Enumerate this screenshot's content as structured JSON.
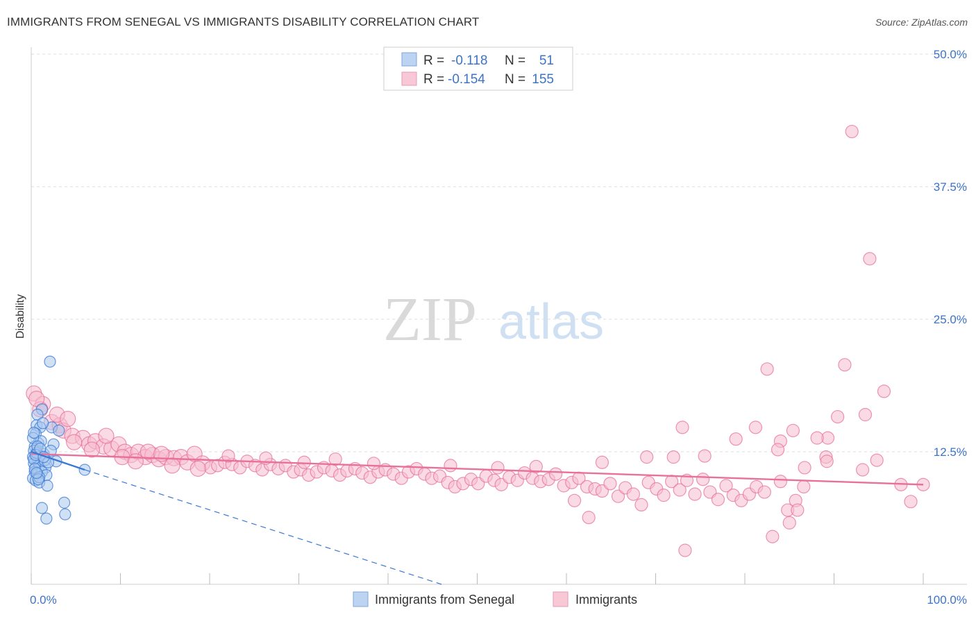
{
  "header": {
    "title": "IMMIGRANTS FROM SENEGAL VS IMMIGRANTS DISABILITY CORRELATION CHART",
    "source": "Source: ZipAtlas.com"
  },
  "watermark": {
    "zip": "ZIP",
    "atlas": "atlas"
  },
  "colors": {
    "blue": "#3a78d4",
    "blue_fill": "#a9c8ee",
    "pink": "#e8709a",
    "pink_fill": "#f5bdd0",
    "tick": "#3b74c8",
    "grid": "#dddddd"
  },
  "legend": {
    "items": [
      {
        "r_label": "R =",
        "r_value": "-0.118",
        "n_label": "N =",
        "n_value": "51"
      },
      {
        "r_label": "R =",
        "r_value": "-0.154",
        "n_label": "N =",
        "n_value": "155"
      }
    ]
  },
  "chart_data": {
    "type": "scatter",
    "title": "IMMIGRANTS FROM SENEGAL VS IMMIGRANTS DISABILITY CORRELATION CHART",
    "xlabel": "",
    "ylabel": "Disability",
    "xlim": [
      0,
      100
    ],
    "ylim": [
      0,
      50
    ],
    "x_tick_labels": [
      "0.0%",
      "100.0%"
    ],
    "y_ticks": [
      12.5,
      25.0,
      37.5,
      50.0
    ],
    "y_tick_labels": [
      "12.5%",
      "25.0%",
      "37.5%",
      "50.0%"
    ],
    "grid": true,
    "legend_position": "top-center",
    "series": [
      {
        "name": "Immigrants from Senegal",
        "color": "#3a78d4",
        "trend": {
          "x": [
            0,
            6
          ],
          "y": [
            12.5,
            10.8
          ],
          "dashed_extension": {
            "x": [
              6,
              46
            ],
            "y": [
              10.8,
              0
            ]
          }
        },
        "points": [
          [
            2.1,
            21.0
          ],
          [
            1.2,
            16.5
          ],
          [
            0.7,
            16.0
          ],
          [
            0.6,
            15.0
          ],
          [
            1.0,
            14.8
          ],
          [
            2.3,
            14.8
          ],
          [
            0.5,
            14.2
          ],
          [
            2.5,
            13.2
          ],
          [
            0.8,
            13.3
          ],
          [
            0.4,
            13.0
          ],
          [
            0.3,
            12.6
          ],
          [
            1.4,
            12.3
          ],
          [
            0.2,
            12.0
          ],
          [
            0.6,
            12.0
          ],
          [
            1.0,
            12.1
          ],
          [
            2.8,
            11.6
          ],
          [
            0.3,
            11.4
          ],
          [
            0.5,
            11.0
          ],
          [
            0.9,
            11.2
          ],
          [
            1.6,
            11.0
          ],
          [
            0.4,
            10.6
          ],
          [
            0.7,
            10.4
          ],
          [
            1.2,
            10.6
          ],
          [
            1.7,
            10.3
          ],
          [
            0.2,
            10.0
          ],
          [
            0.5,
            9.8
          ],
          [
            0.9,
            9.6
          ],
          [
            1.8,
            9.3
          ],
          [
            6.0,
            10.8
          ],
          [
            3.7,
            7.7
          ],
          [
            1.2,
            7.2
          ],
          [
            3.8,
            6.6
          ],
          [
            1.7,
            6.2
          ],
          [
            2.2,
            12.6
          ],
          [
            0.3,
            11.8
          ],
          [
            1.1,
            13.5
          ],
          [
            0.6,
            12.4
          ],
          [
            1.5,
            11.7
          ],
          [
            0.4,
            10.9
          ],
          [
            0.9,
            10.1
          ],
          [
            3.1,
            14.5
          ],
          [
            0.2,
            13.8
          ],
          [
            1.3,
            15.2
          ],
          [
            0.7,
            13.0
          ],
          [
            0.5,
            12.2
          ],
          [
            1.9,
            11.5
          ],
          [
            0.8,
            9.9
          ],
          [
            0.3,
            14.3
          ],
          [
            1.0,
            12.8
          ],
          [
            0.6,
            10.5
          ],
          [
            1.4,
            12.0
          ]
        ]
      },
      {
        "name": "Immigrants",
        "color": "#e8709a",
        "trend": {
          "x": [
            0,
            100
          ],
          "y": [
            12.3,
            9.4
          ]
        },
        "points": [
          [
            0.3,
            18.0
          ],
          [
            1.3,
            17.0
          ],
          [
            1.0,
            16.5
          ],
          [
            2.3,
            15.3
          ],
          [
            3.2,
            15.0
          ],
          [
            3.6,
            14.5
          ],
          [
            4.6,
            14.0
          ],
          [
            5.8,
            13.8
          ],
          [
            4.8,
            13.4
          ],
          [
            6.5,
            13.2
          ],
          [
            7.2,
            13.5
          ],
          [
            8.1,
            13.0
          ],
          [
            9.0,
            12.8
          ],
          [
            9.8,
            13.2
          ],
          [
            10.5,
            12.5
          ],
          [
            11.2,
            12.2
          ],
          [
            12.0,
            12.5
          ],
          [
            12.8,
            12.0
          ],
          [
            13.6,
            12.2
          ],
          [
            14.3,
            11.8
          ],
          [
            15.1,
            12.0
          ],
          [
            16.0,
            11.9
          ],
          [
            16.8,
            12.0
          ],
          [
            17.5,
            11.5
          ],
          [
            18.3,
            12.3
          ],
          [
            19.2,
            11.4
          ],
          [
            20.1,
            11.0
          ],
          [
            20.9,
            11.2
          ],
          [
            21.7,
            11.5
          ],
          [
            22.5,
            11.3
          ],
          [
            23.4,
            11.0
          ],
          [
            24.2,
            11.6
          ],
          [
            25.1,
            11.2
          ],
          [
            25.9,
            10.8
          ],
          [
            26.8,
            11.3
          ],
          [
            27.7,
            10.9
          ],
          [
            28.5,
            11.2
          ],
          [
            29.4,
            10.6
          ],
          [
            30.2,
            10.8
          ],
          [
            31.1,
            10.3
          ],
          [
            32.0,
            10.6
          ],
          [
            32.8,
            11.0
          ],
          [
            33.7,
            10.7
          ],
          [
            34.6,
            10.3
          ],
          [
            35.4,
            10.7
          ],
          [
            36.3,
            10.9
          ],
          [
            37.1,
            10.5
          ],
          [
            38.0,
            10.1
          ],
          [
            38.9,
            10.6
          ],
          [
            39.7,
            10.8
          ],
          [
            40.6,
            10.4
          ],
          [
            41.5,
            10.0
          ],
          [
            42.3,
            10.6
          ],
          [
            43.2,
            10.9
          ],
          [
            44.1,
            10.4
          ],
          [
            44.9,
            10.0
          ],
          [
            45.8,
            10.2
          ],
          [
            46.7,
            9.6
          ],
          [
            47.5,
            9.2
          ],
          [
            48.4,
            9.5
          ],
          [
            49.3,
            9.9
          ],
          [
            50.1,
            9.5
          ],
          [
            51.0,
            10.2
          ],
          [
            51.9,
            9.8
          ],
          [
            52.7,
            9.4
          ],
          [
            53.6,
            10.1
          ],
          [
            54.5,
            9.8
          ],
          [
            55.3,
            10.5
          ],
          [
            56.2,
            10.0
          ],
          [
            57.1,
            9.7
          ],
          [
            58.0,
            9.9
          ],
          [
            58.8,
            10.4
          ],
          [
            59.7,
            9.3
          ],
          [
            60.6,
            9.6
          ],
          [
            61.4,
            10.0
          ],
          [
            62.3,
            9.2
          ],
          [
            63.2,
            9.0
          ],
          [
            64.0,
            8.8
          ],
          [
            64.9,
            9.5
          ],
          [
            65.8,
            8.3
          ],
          [
            66.6,
            9.1
          ],
          [
            67.5,
            8.5
          ],
          [
            68.4,
            7.5
          ],
          [
            69.2,
            9.6
          ],
          [
            70.1,
            9.0
          ],
          [
            70.9,
            8.4
          ],
          [
            71.8,
            9.7
          ],
          [
            72.7,
            8.9
          ],
          [
            73.5,
            9.8
          ],
          [
            74.4,
            8.5
          ],
          [
            75.3,
            9.9
          ],
          [
            76.1,
            8.7
          ],
          [
            77.0,
            8.0
          ],
          [
            77.9,
            9.3
          ],
          [
            78.7,
            8.4
          ],
          [
            79.6,
            7.9
          ],
          [
            80.5,
            8.5
          ],
          [
            81.3,
            9.2
          ],
          [
            82.2,
            8.7
          ],
          [
            83.1,
            4.5
          ],
          [
            84.0,
            9.7
          ],
          [
            84.8,
            7.0
          ],
          [
            85.7,
            7.9
          ],
          [
            86.6,
            9.2
          ],
          [
            75.5,
            12.1
          ],
          [
            72.0,
            12.0
          ],
          [
            69.0,
            12.0
          ],
          [
            73.0,
            14.8
          ],
          [
            64.0,
            11.5
          ],
          [
            79.0,
            13.7
          ],
          [
            81.2,
            14.8
          ],
          [
            84.0,
            13.5
          ],
          [
            85.4,
            14.5
          ],
          [
            86.7,
            11.0
          ],
          [
            92.0,
            42.7
          ],
          [
            94.0,
            30.7
          ],
          [
            91.2,
            20.7
          ],
          [
            82.5,
            20.3
          ],
          [
            95.6,
            18.2
          ],
          [
            93.5,
            16.0
          ],
          [
            89.3,
            13.8
          ],
          [
            90.4,
            15.8
          ],
          [
            88.1,
            13.8
          ],
          [
            89.1,
            12.0
          ],
          [
            93.2,
            10.8
          ],
          [
            83.7,
            12.7
          ],
          [
            89.2,
            11.6
          ],
          [
            85.0,
            5.8
          ],
          [
            73.3,
            3.2
          ],
          [
            85.9,
            7.0
          ],
          [
            62.5,
            6.3
          ],
          [
            60.9,
            7.9
          ],
          [
            94.8,
            11.7
          ],
          [
            97.5,
            9.4
          ],
          [
            98.6,
            7.8
          ],
          [
            100.0,
            9.4
          ],
          [
            10.2,
            12.0
          ],
          [
            13.1,
            12.5
          ],
          [
            6.8,
            12.7
          ],
          [
            8.4,
            14.0
          ],
          [
            2.9,
            16.0
          ],
          [
            4.1,
            15.6
          ],
          [
            0.6,
            17.5
          ],
          [
            11.7,
            11.6
          ],
          [
            15.8,
            11.2
          ],
          [
            14.6,
            12.3
          ],
          [
            18.7,
            10.9
          ],
          [
            22.1,
            12.1
          ],
          [
            26.3,
            11.9
          ],
          [
            30.6,
            11.5
          ],
          [
            34.1,
            11.8
          ],
          [
            38.4,
            11.4
          ],
          [
            47.0,
            11.2
          ],
          [
            52.3,
            11.0
          ],
          [
            56.6,
            11.1
          ]
        ]
      }
    ]
  },
  "bottom_legend": {
    "items": [
      {
        "label": "Immigrants from Senegal"
      },
      {
        "label": "Immigrants"
      }
    ]
  }
}
